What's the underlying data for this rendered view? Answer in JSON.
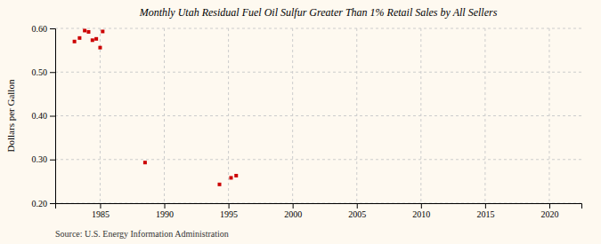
{
  "chart_data": {
    "type": "scatter",
    "title": "Monthly Utah Residual Fuel Oil Sulfur Greater Than 1% Retail Sales by All Sellers",
    "ylabel": "Dollars per Gallon",
    "source": "Source: U.S. Energy Information Administration",
    "color": "#cc0000",
    "marker": "square",
    "grid": true,
    "xlim": [
      1981.5,
      2022.5
    ],
    "ylim": [
      0.2,
      0.6
    ],
    "xticks": [
      1985,
      1990,
      1995,
      2000,
      2005,
      2010,
      2015,
      2020
    ],
    "yticks": [
      {
        "value": 0.2,
        "label": "0.20"
      },
      {
        "value": 0.3,
        "label": "0.30"
      },
      {
        "value": 0.4,
        "label": "0.40"
      },
      {
        "value": 0.5,
        "label": "0.50"
      },
      {
        "value": 0.6,
        "label": "0.60"
      }
    ],
    "x": [
      1983.0,
      1983.4,
      1983.8,
      1984.1,
      1984.4,
      1984.7,
      1985.0,
      1985.2,
      1988.5,
      1994.3,
      1995.2,
      1995.6
    ],
    "y": [
      0.57,
      0.578,
      0.595,
      0.592,
      0.573,
      0.576,
      0.556,
      0.593,
      0.293,
      0.243,
      0.258,
      0.263
    ]
  }
}
